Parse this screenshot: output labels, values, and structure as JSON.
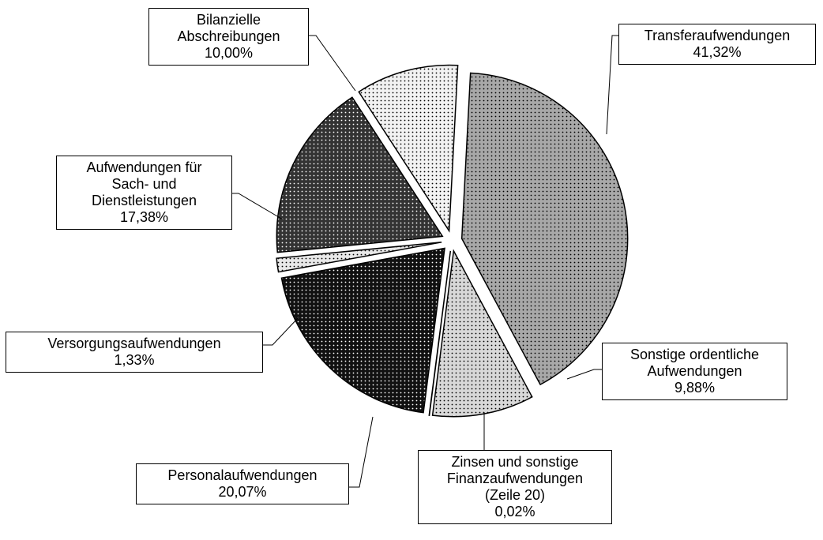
{
  "chart_data": {
    "type": "pie",
    "categories": [
      "Transferaufwendungen",
      "Sonstige ordentliche\nAufwendungen",
      "Zinsen und sonstige\nFinanzaufwendungen\n(Zeile 20)",
      "Personalaufwendungen",
      "Versorgungsaufwendungen",
      "Aufwendungen für\nSach- und\nDienstleistungen",
      "Bilanzielle\nAbschreibungen"
    ],
    "values": [
      41.32,
      9.88,
      0.02,
      20.07,
      1.33,
      17.38,
      10.0
    ],
    "value_labels": [
      "41,32%",
      "9,88%",
      "0,02%",
      "20,07%",
      "1,33%",
      "17,38%",
      "10,00%"
    ],
    "colors": [
      "#a8a8a8",
      "#d8d8d8",
      "#ffffff",
      "#111111",
      "#e8e8e8",
      "#333333",
      "#f2f2f2"
    ]
  }
}
